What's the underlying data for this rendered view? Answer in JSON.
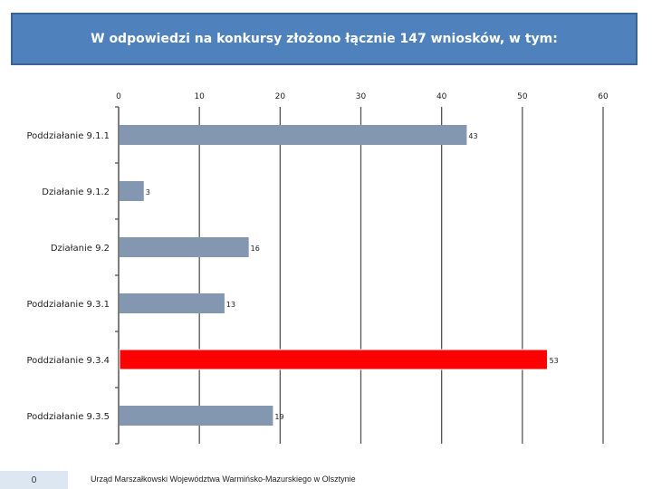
{
  "title": "W odpowiedzi na konkursy złożono łącznie 147 wniosków, w tym:",
  "footer": {
    "slide_number": "0",
    "text": "Urząd Marszałkowski Województwa Warmińsko-Mazurskiego w Olsztynie"
  },
  "colors": {
    "title_bg": "#4f81bd",
    "bar_default": "#8497b0",
    "bar_highlight": "#ff0000"
  },
  "chart_data": {
    "type": "bar",
    "orientation": "horizontal",
    "categories": [
      "Poddziałanie 9.1.1",
      "Działanie 9.1.2",
      "Działanie 9.2",
      "Poddziałanie 9.3.1",
      "Poddziałanie 9.3.4",
      "Poddziałanie 9.3.5"
    ],
    "values": [
      43,
      3,
      16,
      13,
      53,
      19
    ],
    "highlight_index": 4,
    "xlim": [
      0,
      60
    ],
    "xticks": [
      0,
      10,
      20,
      30,
      40,
      50,
      60
    ],
    "grid": true,
    "axis_position": "top",
    "data_labels": true
  }
}
